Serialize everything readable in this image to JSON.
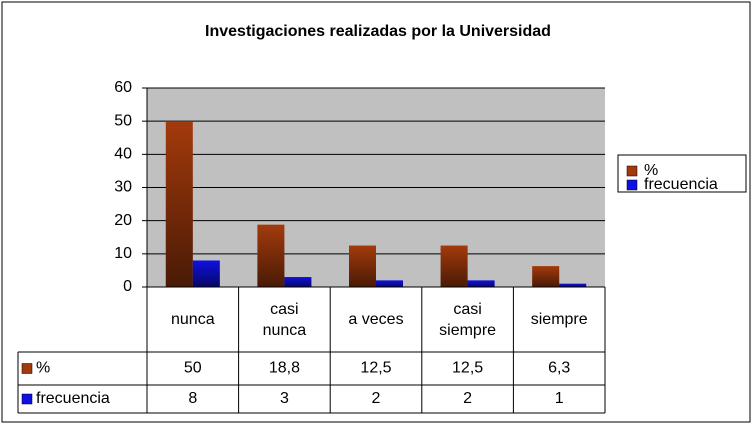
{
  "chart_data": {
    "type": "bar",
    "title": "Investigaciones realizadas por la Universidad",
    "categories": [
      "nunca",
      "casi nunca",
      "a veces",
      "casi siempre",
      "siempre"
    ],
    "series": [
      {
        "name": "%",
        "color": "#a33a0c",
        "values": [
          50,
          18.8,
          12.5,
          12.5,
          6.3
        ],
        "value_labels": [
          "50",
          "18,8",
          "12,5",
          "12,5",
          "6,3"
        ]
      },
      {
        "name": "frecuencia",
        "color": "#1010e0",
        "values": [
          8,
          3,
          2,
          2,
          1
        ]
      }
    ],
    "ylim": [
      0,
      60
    ],
    "yticks": [
      0,
      10,
      20,
      30,
      40,
      50,
      60
    ],
    "grid": true,
    "legend": "right"
  }
}
